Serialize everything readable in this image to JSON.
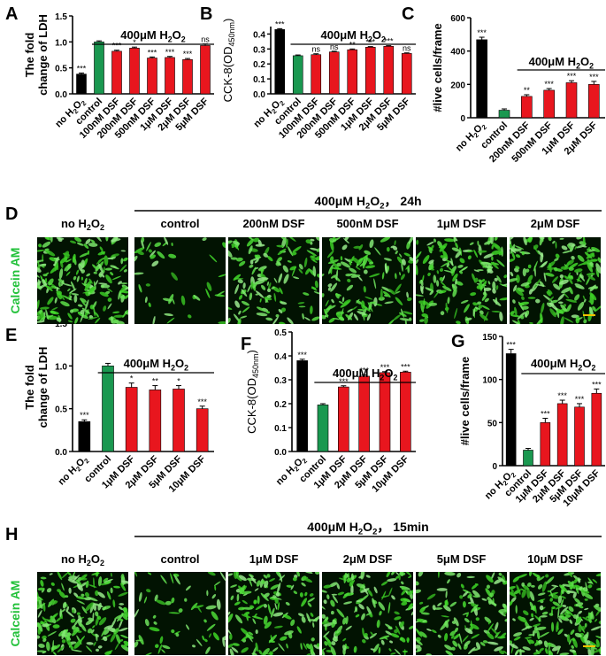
{
  "colors": {
    "black": "#000000",
    "green": "#1a9850",
    "red": "#e8161e",
    "axis": "#000000",
    "panel_label": "#000000",
    "stain_label": "#22c13a",
    "micro_bg": "#021302",
    "cell": "#4fd83a",
    "scalebar": "#f2c200"
  },
  "chart_data": [
    {
      "type": "bar",
      "panel": "A",
      "ylabel": "The fold change of LDH",
      "condition": "400μM H",
      "condition_sub": "2",
      "condition_tail": "O",
      "condition_sub2": "2",
      "categories": [
        "no H2O2",
        "control",
        "100nM DSF",
        "200nM DSF",
        "500nM DSF",
        "1μM DSF",
        "2μM DSF",
        "5μM DSF"
      ],
      "values": [
        0.38,
        1.0,
        0.82,
        0.88,
        0.69,
        0.7,
        0.66,
        0.93
      ],
      "errors": [
        0.02,
        0.02,
        0.02,
        0.02,
        0.02,
        0.02,
        0.02,
        0.03
      ],
      "colors": [
        "black",
        "green",
        "red",
        "red",
        "red",
        "red",
        "red",
        "red"
      ],
      "sig": [
        "***",
        "",
        "***",
        "*",
        "***",
        "***",
        "***",
        "ns"
      ],
      "ylim": [
        0,
        1.5
      ],
      "yticks": [
        0.0,
        0.5,
        1.0,
        1.5
      ],
      "yticklabels": [
        "0.0",
        "0.5",
        "1.0",
        "1.5"
      ]
    },
    {
      "type": "bar",
      "panel": "B",
      "ylabel": "CCK-8(OD",
      "ylabel_sub": "450nm",
      "ylabel_tail": ")",
      "condition": "400μM H",
      "condition_sub": "2",
      "condition_tail": "O",
      "condition_sub2": "2",
      "categories": [
        "no H2O2",
        "control",
        "100nM DSF",
        "200nM DSF",
        "500nM DSF",
        "1μM DSF",
        "2μM DSF",
        "5μM DSF"
      ],
      "values": [
        0.43,
        0.255,
        0.262,
        0.28,
        0.295,
        0.312,
        0.318,
        0.27
      ],
      "errors": [
        0.006,
        0.005,
        0.006,
        0.005,
        0.005,
        0.004,
        0.004,
        0.004
      ],
      "colors": [
        "black",
        "green",
        "red",
        "red",
        "red",
        "red",
        "red",
        "red"
      ],
      "sig": [
        "***",
        "",
        "ns",
        "ns",
        "**",
        "***",
        "***",
        "ns"
      ],
      "ylim": [
        0,
        0.45
      ],
      "yticks": [
        0.0,
        0.1,
        0.2,
        0.3,
        0.4
      ],
      "yticklabels": [
        "0.0",
        "0.1",
        "0.2",
        "0.3",
        "0.4"
      ]
    },
    {
      "type": "bar",
      "panel": "C",
      "ylabel": "#live cells/frame",
      "condition": "400μM H",
      "condition_sub": "2",
      "condition_tail": "O",
      "condition_sub2": "2",
      "categories": [
        "no H2O2",
        "control",
        "200nM DSF",
        "500nM DSF",
        "1μM DSF",
        "2μM DSF"
      ],
      "values": [
        468,
        45,
        128,
        165,
        210,
        200
      ],
      "errors": [
        15,
        8,
        10,
        10,
        12,
        18
      ],
      "colors": [
        "black",
        "green",
        "red",
        "red",
        "red",
        "red"
      ],
      "sig": [
        "***",
        "",
        "**",
        "***",
        "***",
        "***"
      ],
      "ylim": [
        0,
        600
      ],
      "yticks": [
        0,
        200,
        400,
        600
      ],
      "yticklabels": [
        "0",
        "200",
        "400",
        "600"
      ]
    },
    {
      "type": "bar",
      "panel": "E",
      "ylabel": "The fold change of LDH",
      "condition": "400μM H",
      "condition_sub": "2",
      "condition_tail": "O",
      "condition_sub2": "2",
      "categories": [
        "no H2O2",
        "control",
        "1μM DSF",
        "2μM DSF",
        "5μM DSF",
        "10μM DSF"
      ],
      "values": [
        0.35,
        1.0,
        0.75,
        0.72,
        0.73,
        0.5
      ],
      "errors": [
        0.02,
        0.03,
        0.05,
        0.05,
        0.04,
        0.03
      ],
      "colors": [
        "black",
        "green",
        "red",
        "red",
        "red",
        "red"
      ],
      "sig": [
        "***",
        "",
        "*",
        "**",
        "*",
        "***"
      ],
      "ylim": [
        0,
        1.5
      ],
      "yticks": [
        0.0,
        0.5,
        1.0,
        1.5
      ],
      "yticklabels": [
        "0.0",
        "0.5",
        "1.0",
        "1.5"
      ]
    },
    {
      "type": "bar",
      "panel": "F",
      "ylabel": "CCK-8(OD",
      "ylabel_sub": "450nm",
      "ylabel_tail": ")",
      "condition": "400μM H",
      "condition_sub": "2",
      "condition_tail": "O",
      "condition_sub2": "2",
      "categories": [
        "no H2O2",
        "control",
        "1μM DSF",
        "2μM DSF",
        "5μM DSF",
        "10μM DSF"
      ],
      "values": [
        0.38,
        0.195,
        0.27,
        0.315,
        0.33,
        0.332
      ],
      "errors": [
        0.006,
        0.005,
        0.005,
        0.005,
        0.004,
        0.004
      ],
      "colors": [
        "black",
        "green",
        "red",
        "red",
        "red",
        "red"
      ],
      "sig": [
        "***",
        "",
        "***",
        "***",
        "***",
        "***"
      ],
      "ylim": [
        0,
        0.5
      ],
      "yticks": [
        0.0,
        0.1,
        0.2,
        0.3,
        0.4,
        0.5
      ],
      "yticklabels": [
        "0.0",
        "0.1",
        "0.2",
        "0.3",
        "0.4",
        "0.5"
      ]
    },
    {
      "type": "bar",
      "panel": "G",
      "ylabel": "#live cells/frame",
      "condition": "400μM H",
      "condition_sub": "2",
      "condition_tail": "O",
      "condition_sub2": "2",
      "categories": [
        "no H2O2",
        "control",
        "1μM DSF",
        "2μM DSF",
        "5μM DSF",
        "10μM DSF"
      ],
      "values": [
        130,
        18,
        50,
        72,
        68,
        84
      ],
      "errors": [
        5,
        2,
        5,
        4,
        4,
        5
      ],
      "colors": [
        "black",
        "green",
        "red",
        "red",
        "red",
        "red"
      ],
      "sig": [
        "***",
        "",
        "***",
        "***",
        "***",
        "***"
      ],
      "ylim": [
        0,
        150
      ],
      "yticks": [
        0,
        50,
        100,
        150
      ],
      "yticklabels": [
        "0",
        "50",
        "100",
        "150"
      ]
    }
  ],
  "micrograph_rows": [
    {
      "panel": "D",
      "stain": "Calcein AM",
      "condition": "400μM H",
      "condition_sub": "2",
      "condition_tail": "O",
      "condition_sub2": "2",
      "condition_time": "， 24h",
      "labels": [
        "no H",
        "control",
        "200nM DSF",
        "500nM DSF",
        "1μM DSF",
        "2μM DSF"
      ],
      "label0_sub": "2",
      "label0_tail": "O",
      "label0_sub2": "2",
      "density": [
        0.95,
        0.18,
        0.6,
        0.62,
        0.72,
        0.8
      ]
    },
    {
      "panel": "H",
      "stain": "Calcein AM",
      "condition": "400μM H",
      "condition_sub": "2",
      "condition_tail": "O",
      "condition_sub2": "2",
      "condition_time": "， 15min",
      "labels": [
        "no H",
        "control",
        "1μM DSF",
        "2μM DSF",
        "5μM DSF",
        "10μM DSF"
      ],
      "label0_sub": "2",
      "label0_tail": "O",
      "label0_sub2": "2",
      "density": [
        0.85,
        0.25,
        0.6,
        0.65,
        0.55,
        0.9
      ]
    }
  ]
}
